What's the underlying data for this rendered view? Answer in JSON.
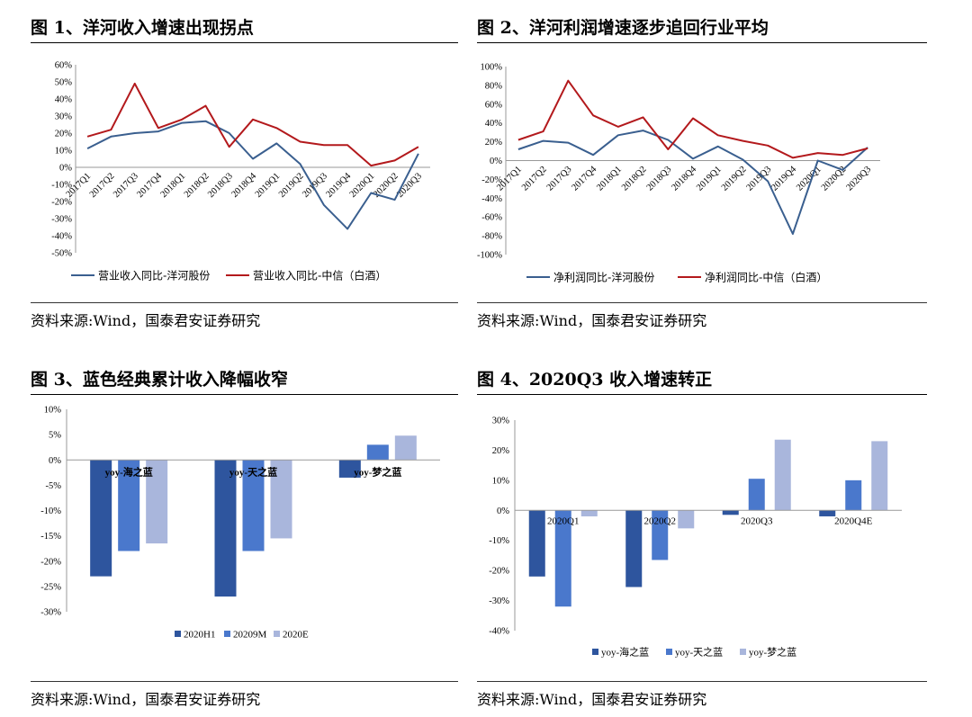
{
  "figures": [
    {
      "title": "图 1、洋河收入增速出现拐点",
      "source": "资料来源:Wind，国泰君安证券研究"
    },
    {
      "title": "图 2、洋河利润增速逐步追回行业平均",
      "source": "资料来源:Wind，国泰君安证券研究"
    },
    {
      "title": "图 3、蓝色经典累计收入降幅收窄",
      "source": "资料来源:Wind，国泰君安证券研究"
    },
    {
      "title": "图 4、2020Q3 收入增速转正",
      "source": "资料来源:Wind，国泰君安证券研究"
    }
  ],
  "colors": {
    "blue_line": "#3a5f8f",
    "red_line": "#b3191c",
    "bar_dark": "#2e559e",
    "bar_mid": "#4a78cc",
    "bar_light": "#a9b6dc"
  },
  "chart_data": [
    {
      "type": "line",
      "categories": [
        "2017Q1",
        "2017Q2",
        "2017Q3",
        "2017Q4",
        "2018Q1",
        "2018Q2",
        "2018Q3",
        "2018Q4",
        "2019Q1",
        "2019Q2",
        "2019Q3",
        "2019Q4",
        "2020Q1",
        "2020Q2",
        "2020Q3"
      ],
      "series": [
        {
          "name": "营业收入同比-洋河股份",
          "values": [
            11,
            18,
            20,
            21,
            26,
            27,
            20,
            5,
            14,
            2,
            -22,
            -36,
            -15,
            -19,
            8
          ]
        },
        {
          "name": "营业收入同比-中信（白酒）",
          "values": [
            18,
            22,
            49,
            23,
            28,
            36,
            12,
            28,
            23,
            15,
            13,
            13,
            1,
            4,
            12
          ]
        }
      ],
      "ylim": [
        -50,
        60
      ],
      "yticks": [
        "60%",
        "50%",
        "40%",
        "30%",
        "20%",
        "10%",
        "0%",
        "-10%",
        "-20%",
        "-30%",
        "-40%",
        "-50%"
      ],
      "title": "",
      "xlabel": "",
      "ylabel": "",
      "legend": "bottom"
    },
    {
      "type": "line",
      "categories": [
        "2017Q1",
        "2017Q2",
        "2017Q3",
        "2017Q4",
        "2018Q1",
        "2018Q2",
        "2018Q3",
        "2018Q4",
        "2019Q1",
        "2019Q2",
        "2019Q3",
        "2019Q4",
        "2020Q1",
        "2020Q2",
        "2020Q3"
      ],
      "series": [
        {
          "name": "净利润同比-洋河股份",
          "values": [
            12,
            21,
            19,
            6,
            27,
            32,
            22,
            2,
            15,
            1,
            -22,
            -78,
            0,
            -10,
            14
          ]
        },
        {
          "name": "净利润同比-中信（白酒）",
          "values": [
            22,
            31,
            85,
            48,
            36,
            46,
            12,
            45,
            27,
            21,
            16,
            3,
            8,
            6,
            13
          ]
        }
      ],
      "ylim": [
        -100,
        100
      ],
      "yticks": [
        "100%",
        "80%",
        "60%",
        "40%",
        "20%",
        "0%",
        "-20%",
        "-40%",
        "-60%",
        "-80%",
        "-100%"
      ],
      "title": "",
      "xlabel": "",
      "ylabel": "",
      "legend": "bottom"
    },
    {
      "type": "bar",
      "categories": [
        "yoy-海之蓝",
        "yoy-天之蓝",
        "yoy-梦之蓝"
      ],
      "series": [
        {
          "name": "2020H1",
          "values": [
            -23,
            -27,
            -3.5
          ]
        },
        {
          "name": "20209M",
          "values": [
            -18,
            -18,
            3
          ]
        },
        {
          "name": "2020E",
          "values": [
            -16.5,
            -15.5,
            4.8
          ]
        }
      ],
      "ylim": [
        -30,
        10
      ],
      "yticks": [
        "10%",
        "5%",
        "0%",
        "-5%",
        "-10%",
        "-15%",
        "-20%",
        "-25%",
        "-30%"
      ],
      "title": "",
      "xlabel": "",
      "ylabel": "",
      "legend": "bottom"
    },
    {
      "type": "bar",
      "categories": [
        "2020Q1",
        "2020Q2",
        "2020Q3",
        "2020Q4E"
      ],
      "series": [
        {
          "name": "yoy-海之蓝",
          "values": [
            -22,
            -25.5,
            -1.5,
            -2
          ]
        },
        {
          "name": "yoy-天之蓝",
          "values": [
            -32,
            -16.5,
            10.5,
            10
          ]
        },
        {
          "name": "yoy-梦之蓝",
          "values": [
            -2,
            -6,
            23.5,
            23
          ]
        }
      ],
      "ylim": [
        -40,
        30
      ],
      "yticks": [
        "30%",
        "20%",
        "10%",
        "0%",
        "-10%",
        "-20%",
        "-30%",
        "-40%"
      ],
      "title": "",
      "xlabel": "",
      "ylabel": "",
      "legend": "bottom"
    }
  ]
}
